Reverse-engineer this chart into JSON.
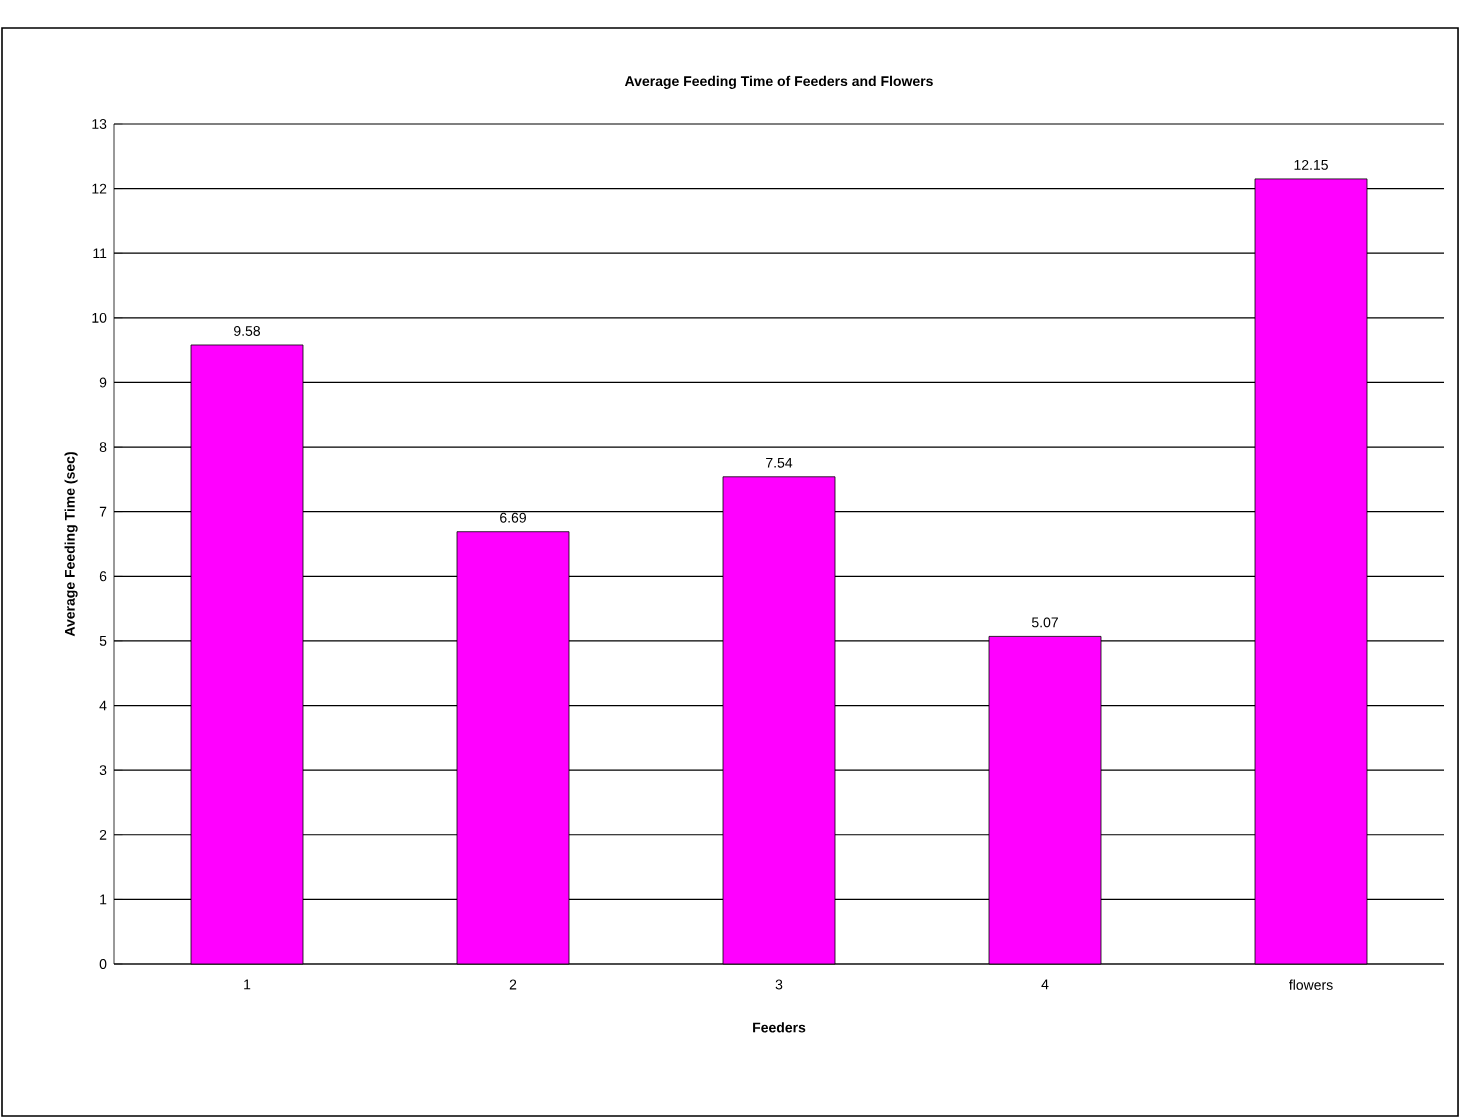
{
  "chart_data": {
    "type": "bar",
    "title": "Average Feeding Time of Feeders and Flowers",
    "xlabel": "Feeders",
    "ylabel": "Average Feeding Time (sec)",
    "categories": [
      "1",
      "2",
      "3",
      "4",
      "flowers"
    ],
    "values": [
      9.58,
      6.69,
      7.54,
      5.07,
      12.15
    ],
    "color": "#ff00ff",
    "ylim": [
      0,
      13
    ],
    "yticks": [
      0,
      1,
      2,
      3,
      4,
      5,
      6,
      7,
      8,
      9,
      10,
      11,
      12,
      13
    ],
    "grid": "y",
    "data_labels": true
  }
}
